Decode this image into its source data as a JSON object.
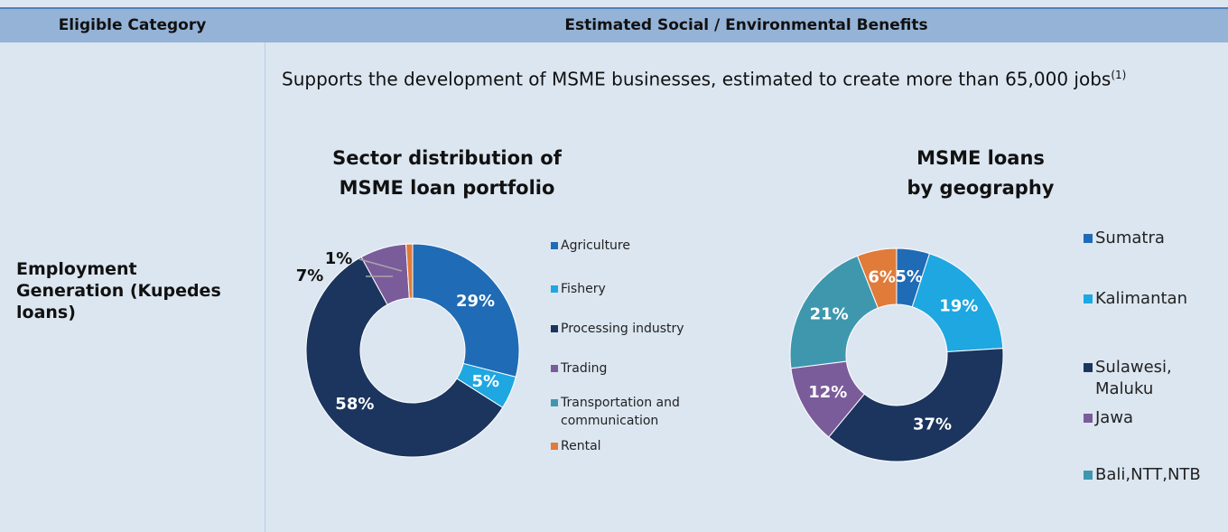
{
  "table": {
    "headers": [
      "Eligible Category",
      "Estimated Social / Environmental Benefits"
    ],
    "rows": [
      {
        "category": "Employment Generation (Kupedes loans)",
        "description": "Supports the development of MSME businesses, estimated to create more than 65,000 jobs",
        "footnote": "(1)"
      }
    ]
  },
  "chart_data": [
    {
      "type": "pie",
      "donut": true,
      "title": [
        "Sector distribution of",
        "MSME loan portfolio"
      ],
      "categories": [
        "Agriculture",
        "Fishery",
        "Processing industry",
        "Trading",
        "Transportation and communication",
        "Rental"
      ],
      "values": [
        29,
        5,
        58,
        7,
        0,
        1
      ],
      "value_labels": [
        "29%",
        "5%",
        "58%",
        "7%",
        null,
        "1%"
      ],
      "colors": [
        "#1f6bb5",
        "#1ea7e1",
        "#1b355e",
        "#7b5c9a",
        "#3f97ae",
        "#e07b39"
      ],
      "legend": "right"
    },
    {
      "type": "pie",
      "donut": true,
      "title": [
        "MSME loans",
        "by geography"
      ],
      "categories": [
        "Sumatra",
        "Kalimantan",
        "Sulawesi, Maluku",
        "Jawa",
        "Bali,NTT,NTB",
        null
      ],
      "values": [
        5,
        19,
        37,
        12,
        21,
        6
      ],
      "value_labels": [
        "5%",
        "19%",
        "37%",
        "12%",
        "21%",
        "6%"
      ],
      "colors": [
        "#1f6bb5",
        "#1ea7e1",
        "#1b355e",
        "#7b5c9a",
        "#3f97ae",
        "#e07b39"
      ],
      "legend": "right"
    }
  ]
}
